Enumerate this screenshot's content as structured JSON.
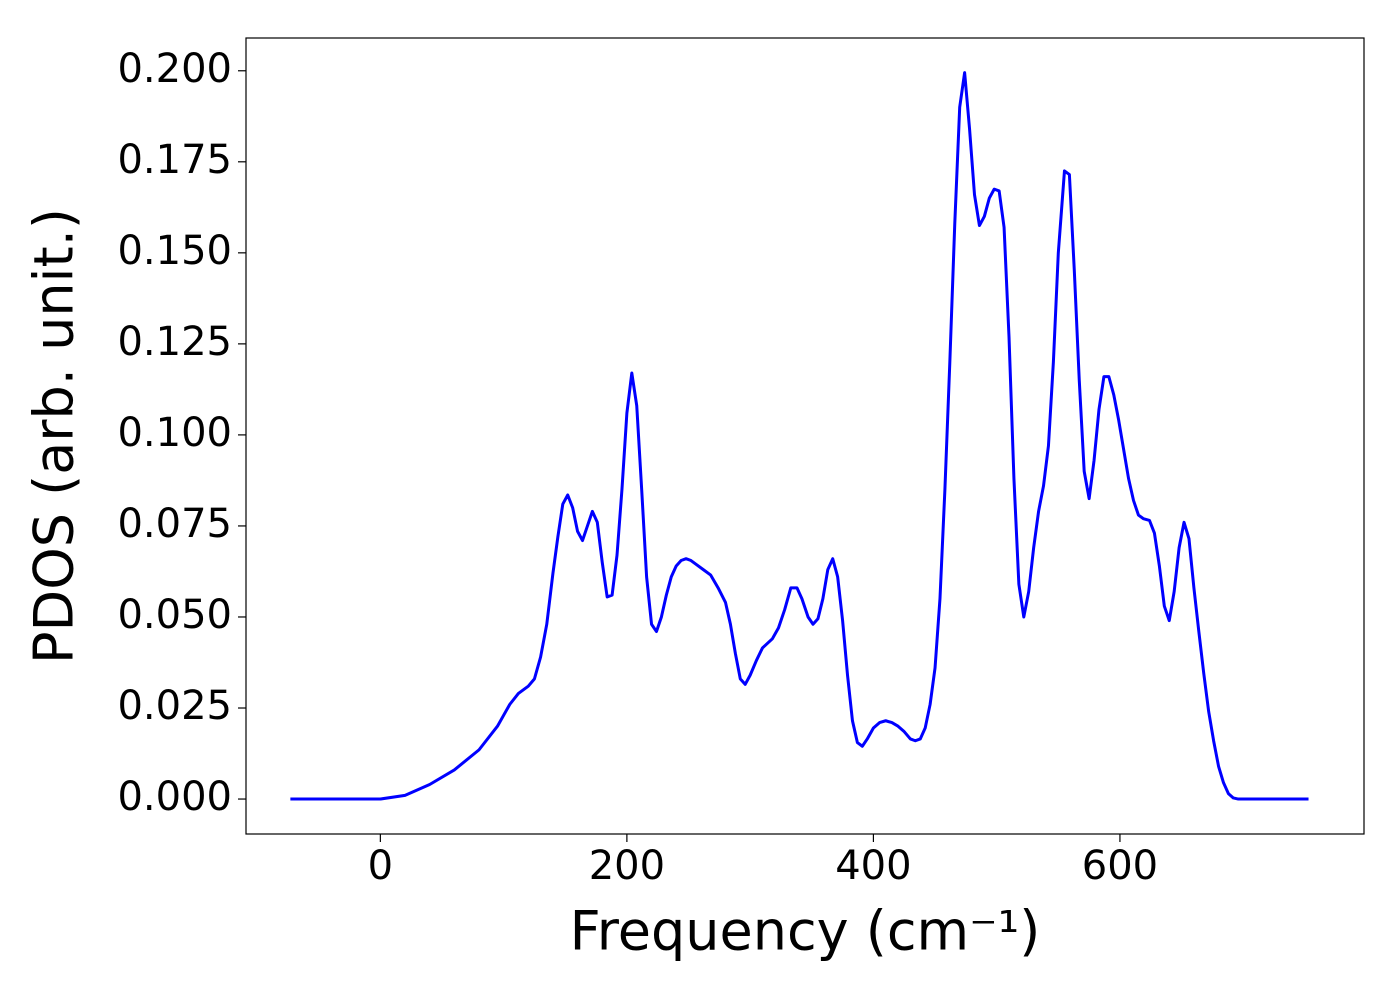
{
  "chart_data": {
    "type": "line",
    "xlabel": "Frequency (cm⁻¹)",
    "ylabel": "PDOS (arb. unit.)",
    "xlim": [
      -109,
      798
    ],
    "ylim": [
      -0.0096,
      0.209
    ],
    "xticks": [
      0,
      200,
      400,
      600
    ],
    "yticks": [
      {
        "value": 0,
        "label": "0.000"
      },
      {
        "value": 0.025,
        "label": "0.025"
      },
      {
        "value": 0.05,
        "label": "0.050"
      },
      {
        "value": 0.075,
        "label": "0.075"
      },
      {
        "value": 0.1,
        "label": "0.100"
      },
      {
        "value": 0.125,
        "label": "0.125"
      },
      {
        "value": 0.15,
        "label": "0.150"
      },
      {
        "value": 0.175,
        "label": "0.175"
      },
      {
        "value": 0.2,
        "label": "0.200"
      }
    ],
    "grid": false,
    "color": "#0000ff",
    "x": [
      -73,
      0,
      20,
      40,
      60,
      80,
      95,
      105,
      112,
      120,
      125,
      130,
      135,
      140,
      144,
      148,
      152,
      156,
      160,
      164,
      168,
      172,
      176,
      180,
      184,
      188,
      192,
      196,
      200,
      204,
      208,
      212,
      216,
      220,
      224,
      228,
      232,
      236,
      240,
      244,
      248,
      252,
      256,
      262,
      268,
      274,
      280,
      284,
      288,
      292,
      296,
      300,
      305,
      310,
      318,
      323,
      328,
      333,
      338,
      342,
      347,
      351,
      355,
      359,
      363,
      367,
      371,
      375,
      379,
      383,
      387,
      391,
      395,
      400,
      405,
      410,
      415,
      420,
      425,
      430,
      434,
      438,
      442,
      446,
      450,
      454,
      458,
      462,
      466,
      470,
      474,
      478,
      482,
      486,
      490,
      494,
      498,
      502,
      506,
      510,
      514,
      518,
      522,
      526,
      530,
      534,
      538,
      542,
      546,
      550,
      555,
      559,
      563,
      567,
      571,
      575,
      579,
      583,
      587,
      591,
      595,
      599,
      603,
      607,
      611,
      615,
      619,
      624,
      628,
      632,
      636,
      640,
      644,
      648,
      652,
      656,
      660,
      664,
      668,
      672,
      676,
      680,
      684,
      688,
      692,
      696,
      753
    ],
    "values": [
      0,
      0,
      0.001,
      0.004,
      0.008,
      0.0135,
      0.02,
      0.026,
      0.029,
      0.031,
      0.033,
      0.039,
      0.048,
      0.062,
      0.072,
      0.081,
      0.0835,
      0.08,
      0.0735,
      0.071,
      0.075,
      0.079,
      0.076,
      0.065,
      0.0555,
      0.056,
      0.067,
      0.085,
      0.106,
      0.117,
      0.108,
      0.085,
      0.061,
      0.048,
      0.046,
      0.05,
      0.056,
      0.061,
      0.064,
      0.0655,
      0.066,
      0.0655,
      0.0645,
      0.063,
      0.0615,
      0.058,
      0.054,
      0.048,
      0.04,
      0.033,
      0.0315,
      0.034,
      0.038,
      0.0415,
      0.044,
      0.047,
      0.052,
      0.058,
      0.058,
      0.055,
      0.05,
      0.048,
      0.0495,
      0.055,
      0.063,
      0.066,
      0.061,
      0.049,
      0.034,
      0.0215,
      0.0155,
      0.0145,
      0.0165,
      0.0195,
      0.021,
      0.0215,
      0.021,
      0.02,
      0.0185,
      0.0165,
      0.016,
      0.0165,
      0.0195,
      0.026,
      0.036,
      0.055,
      0.085,
      0.12,
      0.158,
      0.19,
      0.1995,
      0.184,
      0.166,
      0.1575,
      0.16,
      0.165,
      0.1675,
      0.167,
      0.157,
      0.127,
      0.088,
      0.059,
      0.05,
      0.057,
      0.069,
      0.079,
      0.086,
      0.097,
      0.12,
      0.15,
      0.1725,
      0.1715,
      0.145,
      0.115,
      0.09,
      0.0825,
      0.093,
      0.107,
      0.116,
      0.116,
      0.111,
      0.104,
      0.096,
      0.088,
      0.082,
      0.078,
      0.077,
      0.0765,
      0.073,
      0.064,
      0.053,
      0.049,
      0.057,
      0.069,
      0.076,
      0.0715,
      0.058,
      0.046,
      0.0345,
      0.024,
      0.016,
      0.009,
      0.0045,
      0.0015,
      0.0003,
      0,
      0
    ]
  }
}
